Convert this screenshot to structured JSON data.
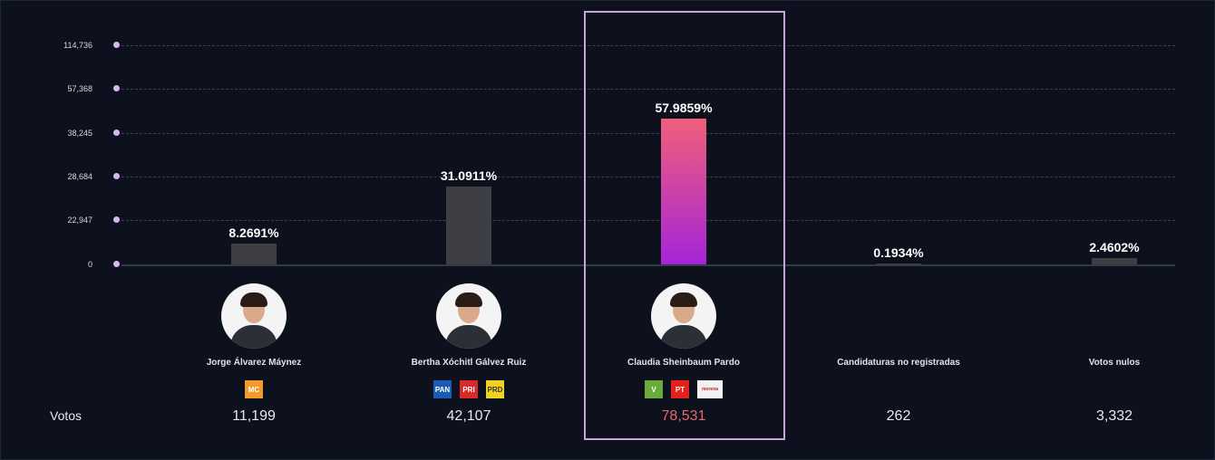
{
  "chart_data": {
    "type": "bar",
    "ylabel": "",
    "xlabel": "",
    "y_ticks": [
      "114,736",
      "57,368",
      "38,245",
      "28,684",
      "22,947",
      "0"
    ],
    "ylim": [
      0,
      114736
    ],
    "categories": [
      "Jorge Álvarez Máynez",
      "Bertha Xóchitl Gálvez Ruiz",
      "Claudia Sheinbaum Pardo",
      "Candidaturas no registradas",
      "Votos nulos"
    ],
    "values": [
      11199,
      42107,
      78531,
      262,
      3332
    ],
    "percent_labels": [
      "8.2691%",
      "31.0911%",
      "57.9859%",
      "0.1934%",
      "2.4602%"
    ],
    "vote_labels": [
      "11,199",
      "42,107",
      "78,531",
      "262",
      "3,332"
    ],
    "highlighted": "Claudia Sheinbaum Pardo"
  },
  "votes_row_label": "Votos",
  "candidates": [
    {
      "name": "Jorge Álvarez Máynez",
      "parties": [
        {
          "label": "MC",
          "color": "#f39a2b"
        }
      ]
    },
    {
      "name": "Bertha Xóchitl Gálvez Ruiz",
      "parties": [
        {
          "label": "PAN",
          "color": "#1a5bb5"
        },
        {
          "label": "PRI",
          "color": "#d92a2a"
        },
        {
          "label": "PRD",
          "color": "#f3d21f"
        }
      ]
    },
    {
      "name": "Claudia Sheinbaum Pardo",
      "parties": [
        {
          "label": "V",
          "color": "#6aab3a"
        },
        {
          "label": "PT",
          "color": "#e3201b"
        },
        {
          "label": "morena",
          "color": "#f2f2f2"
        }
      ]
    },
    {
      "name": "Candidaturas no registradas",
      "parties": []
    },
    {
      "name": "Votos nulos",
      "parties": []
    }
  ],
  "colors": {
    "accent": "#c9a3df",
    "bar": "#3d3f44",
    "win_top": "#f0607a",
    "win_bottom": "#a524d8",
    "win_votes": "#e8666f"
  }
}
